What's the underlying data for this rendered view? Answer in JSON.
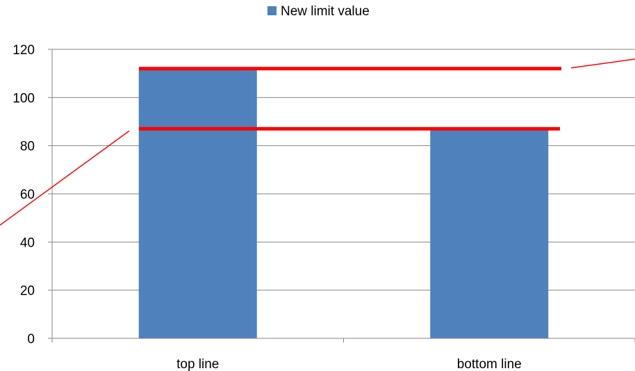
{
  "chart_data": {
    "type": "bar",
    "categories": [
      "top line",
      "bottom line"
    ],
    "series": [
      {
        "name": "New limit value",
        "values": [
          112,
          87
        ],
        "color": "#4F81BD"
      }
    ],
    "ylim": [
      0,
      120
    ],
    "yticks": [
      0,
      20,
      40,
      60,
      80,
      100,
      120
    ],
    "grid": true,
    "legend": "top-center",
    "annotations": [
      {
        "type": "hline",
        "value": 112,
        "color": "#FF0000"
      },
      {
        "type": "hline",
        "value": 87,
        "color": "#FF0000"
      }
    ]
  }
}
